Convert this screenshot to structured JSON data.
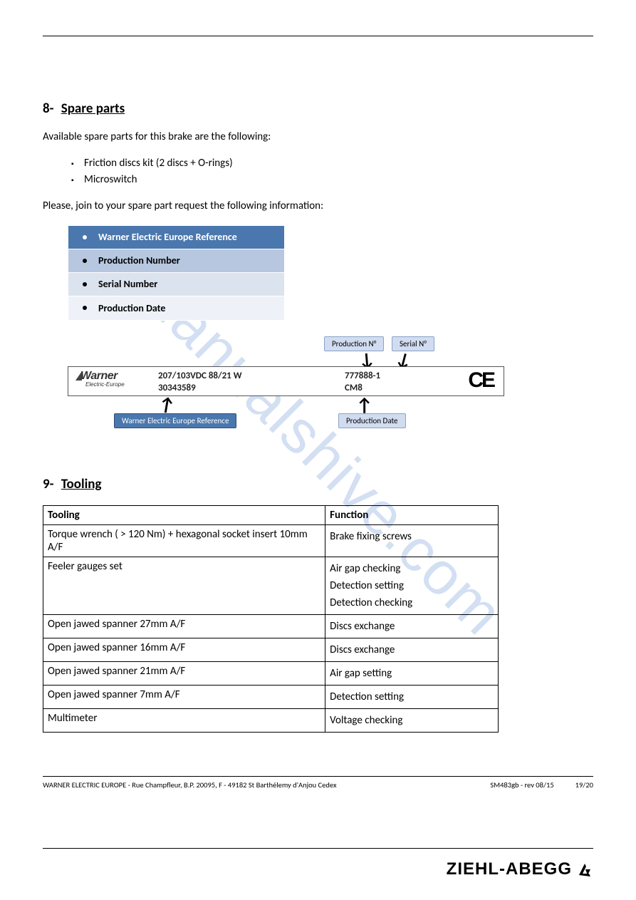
{
  "watermark": "manualshive.com",
  "section8": {
    "number": "8-",
    "title": "Spare parts",
    "intro": "Available spare parts for this brake are the following:",
    "items": [
      "Friction discs kit (2 discs + O-rings)",
      "Microswitch"
    ],
    "request_text": "Please, join to your spare part request the following information:",
    "info_rows": [
      {
        "label": "Warner Electric Europe Reference",
        "bg": "#4a77ad",
        "fg": "#ffffff"
      },
      {
        "label": "Production Number",
        "bg": "#b7c7df",
        "fg": "#000000"
      },
      {
        "label": "Serial Number",
        "bg": "#dbe3ef",
        "fg": "#000000"
      },
      {
        "label": "Production Date",
        "bg": "#eef2f8",
        "fg": "#000000"
      }
    ]
  },
  "plate": {
    "logo_main": "Warner",
    "logo_sub": "Electric-Europe",
    "spec1": "207/103VDC 88/21 W",
    "spec2": "30343589",
    "prod_num": "777888-1",
    "prod_date": "CM8",
    "ce": "CE",
    "callouts": {
      "prod_n": "Production N°",
      "serial_n": "Serial N°",
      "ref": "Warner Electric Europe Reference",
      "date": "Production Date"
    }
  },
  "section9": {
    "number": "9-",
    "title": "Tooling",
    "columns": [
      "Tooling",
      "Function"
    ],
    "rows": [
      {
        "tool": "Torque wrench ( > 120 Nm) + hexagonal socket insert 10mm A/F",
        "func": [
          "Brake fixing screws"
        ]
      },
      {
        "tool": "Feeler gauges set",
        "func": [
          "Air gap checking",
          "Detection setting",
          "Detection checking"
        ]
      },
      {
        "tool": "Open jawed spanner 27mm A/F",
        "func": [
          "Discs exchange"
        ]
      },
      {
        "tool": "Open jawed spanner 16mm A/F",
        "func": [
          "Discs exchange"
        ]
      },
      {
        "tool": "Open jawed spanner 21mm A/F",
        "func": [
          "Air gap setting"
        ]
      },
      {
        "tool": "Open jawed spanner 7mm A/F",
        "func": [
          "Detection setting"
        ]
      },
      {
        "tool": "Multimeter",
        "func": [
          "Voltage checking"
        ]
      }
    ]
  },
  "footer": {
    "left": "WARNER ELECTRIC EUROPE - Rue Champfleur, B.P. 20095, F - 49182 St Barthélemy d'Anjou Cedex",
    "mid": "SM483gb - rev 08/15",
    "right": "19/20"
  },
  "brand": "ZIEHL-ABEGG"
}
